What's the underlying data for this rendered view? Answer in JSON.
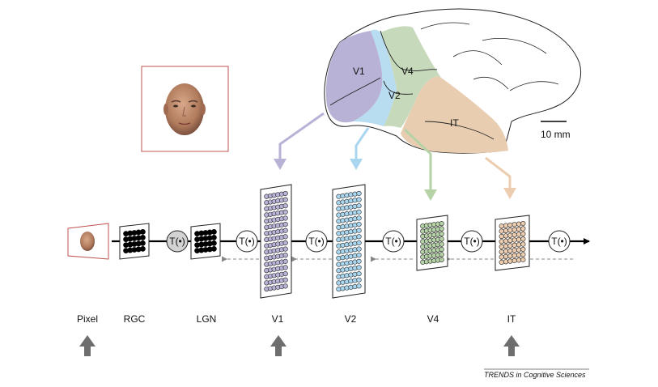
{
  "brain": {
    "areas": [
      {
        "key": "v1",
        "label": "V1",
        "color": "#b8b2d6"
      },
      {
        "key": "v2",
        "label": "V2",
        "color": "#b8dcf0"
      },
      {
        "key": "v4",
        "label": "V4",
        "color": "#c7d9bb"
      },
      {
        "key": "it",
        "label": "IT",
        "color": "#e9cdb0"
      }
    ],
    "scale_bar_label": "10 mm"
  },
  "pipeline": {
    "transform_label": "T(•)",
    "stages": [
      "Pixel",
      "RGC",
      "LGN",
      "V1",
      "V2",
      "V4",
      "IT"
    ],
    "highlighted_stages": [
      "Pixel",
      "V1",
      "IT"
    ]
  },
  "colors": {
    "v1": "#b8b2d6",
    "v2": "#a9d6ef",
    "v4": "#b6d3a8",
    "it": "#eccdb0",
    "frame_red": "#c0504d",
    "gray_arrow": "#6e6e6e"
  },
  "credit": "TRENDS in Cognitive Sciences"
}
